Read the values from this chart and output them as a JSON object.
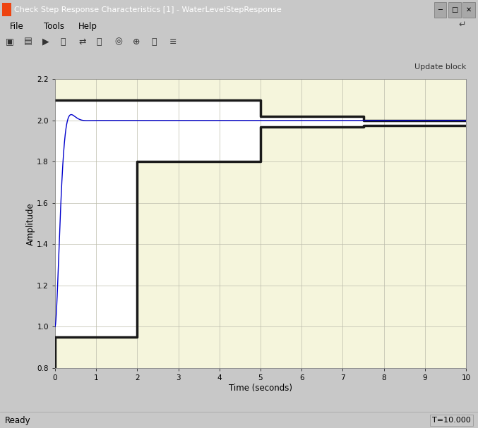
{
  "title": "Check Step Response Characteristics [1] - WaterLevelStepResponse",
  "xlabel": "Time (seconds)",
  "ylabel": "Amplitude",
  "xlim": [
    0,
    10
  ],
  "ylim": [
    0.8,
    2.2
  ],
  "xticks": [
    0,
    1,
    2,
    3,
    4,
    5,
    6,
    7,
    8,
    9,
    10
  ],
  "yticks": [
    0.8,
    1.0,
    1.2,
    1.4,
    1.6,
    1.8,
    2.0,
    2.2
  ],
  "plot_bg_color": "#f5f5dc",
  "window_bg": "#c8c8c8",
  "upper_bound_x": [
    0,
    5.0,
    5.0,
    7.5,
    7.5,
    10.0
  ],
  "upper_bound_y": [
    2.1,
    2.1,
    2.02,
    2.02,
    2.0,
    2.0
  ],
  "lower_bound_x": [
    0.0,
    0.0,
    2.0,
    2.0,
    5.0,
    5.0,
    7.5,
    7.5,
    10.0
  ],
  "lower_bound_y": [
    0.8,
    0.95,
    0.95,
    1.8,
    1.8,
    1.97,
    1.97,
    1.975,
    1.975
  ],
  "bound_linewidth": 2.5,
  "bound_color": "#1a1a1a",
  "response_color": "#0000cc",
  "response_linewidth": 1.0,
  "wn": 12.0,
  "zeta": 0.75,
  "step_initial": 1.0,
  "step_final": 2.0,
  "status_bar_text": "Ready",
  "status_bar_right": "T=10.000",
  "update_block_text": "Update block",
  "title_bar_color": "#1155aa",
  "title_text_color": "white",
  "title_font_size": 8,
  "menu_items": [
    "File",
    "Tools",
    "Help"
  ]
}
